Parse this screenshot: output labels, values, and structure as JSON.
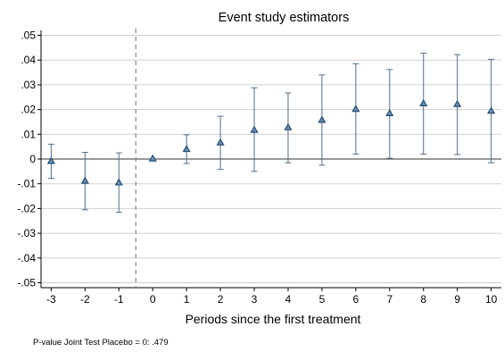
{
  "chart_data": {
    "type": "scatter",
    "title": "Event study estimators",
    "xlabel": "Periods since the first treatment",
    "ylabel": "",
    "note": "P-value Joint Test Placebo = 0:  .479",
    "x": [
      -3,
      -2,
      -1,
      0,
      1,
      2,
      3,
      4,
      5,
      6,
      7,
      8,
      9,
      10
    ],
    "xlim": [
      -3.3,
      10.3
    ],
    "ylim": [
      -0.052,
      0.052
    ],
    "x_ticks": [
      -3,
      -2,
      -1,
      0,
      1,
      2,
      3,
      4,
      5,
      6,
      7,
      8,
      9,
      10
    ],
    "y_ticks": [
      {
        "value": 0.05,
        "label": ".05"
      },
      {
        "value": 0.04,
        "label": ".04"
      },
      {
        "value": 0.03,
        "label": ".03"
      },
      {
        "value": 0.02,
        "label": ".02"
      },
      {
        "value": 0.01,
        "label": ".01"
      },
      {
        "value": 0,
        "label": "0"
      },
      {
        "value": -0.01,
        "label": "-.01"
      },
      {
        "value": -0.02,
        "label": "-.02"
      },
      {
        "value": -0.03,
        "label": "-.03"
      },
      {
        "value": -0.04,
        "label": "-.04"
      },
      {
        "value": -0.05,
        "label": "-.05"
      }
    ],
    "series": [
      {
        "marker": "triangle",
        "values": [
          -0.0008,
          -0.0088,
          -0.0095,
          0.0002,
          0.004,
          0.0067,
          0.0118,
          0.0128,
          0.0158,
          0.0202,
          0.0185,
          0.0225,
          0.0222,
          0.0195
        ],
        "ci_low": [
          -0.0078,
          -0.0205,
          -0.0215,
          0.0002,
          -0.0018,
          -0.0042,
          -0.005,
          -0.0015,
          -0.0025,
          0.002,
          0.0003,
          0.002,
          0.0018,
          -0.0015
        ],
        "ci_high": [
          0.006,
          0.0027,
          0.0025,
          0.0002,
          0.0098,
          0.0173,
          0.0288,
          0.0267,
          0.034,
          0.0385,
          0.0362,
          0.0428,
          0.0422,
          0.0403
        ]
      }
    ],
    "reference_lines": {
      "horizontal_y": 0,
      "vertical_x": -0.5
    },
    "grid": true,
    "colors": {
      "marker": "#1a476f",
      "ci": "#4c6f8f",
      "grid": "#d0d0d0",
      "zero_line": "#333333",
      "vline": "#888888"
    }
  }
}
